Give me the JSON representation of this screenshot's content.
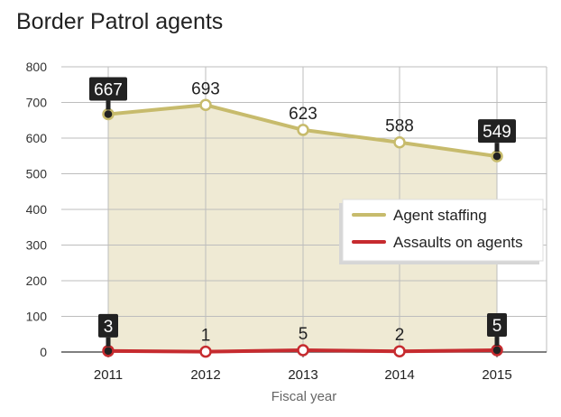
{
  "title": "Border Patrol agents",
  "colors": {
    "staffing": "#c7bb6c",
    "assaults": "#c62b2f",
    "fill": "#efead4",
    "grid": "#bdbdbd",
    "label_box": "#222222"
  },
  "chart_data": {
    "type": "line",
    "title": "Border Patrol agents",
    "xlabel": "Fiscal year",
    "ylabel": "",
    "ylim": [
      0,
      800
    ],
    "yticks": [
      0,
      100,
      200,
      300,
      400,
      500,
      600,
      700,
      800
    ],
    "ytick_labels": [
      "0",
      "100",
      "200",
      "300",
      "400",
      "500",
      "600",
      "700",
      "800"
    ],
    "categories": [
      "2011",
      "2012",
      "2013",
      "2014",
      "2015"
    ],
    "grid": true,
    "legend_position": "center-right",
    "series": [
      {
        "name": "Agent staffing",
        "values": [
          667,
          693,
          623,
          588,
          549
        ],
        "labels": [
          "667",
          "693",
          "623",
          "588",
          "549"
        ],
        "highlight": [
          true,
          false,
          false,
          false,
          true
        ],
        "area": true
      },
      {
        "name": "Assaults on agents",
        "values": [
          3,
          1,
          5,
          2,
          5
        ],
        "labels": [
          "3",
          "1",
          "5",
          "2",
          "5"
        ],
        "highlight": [
          true,
          false,
          false,
          false,
          true
        ],
        "area": false
      }
    ]
  }
}
